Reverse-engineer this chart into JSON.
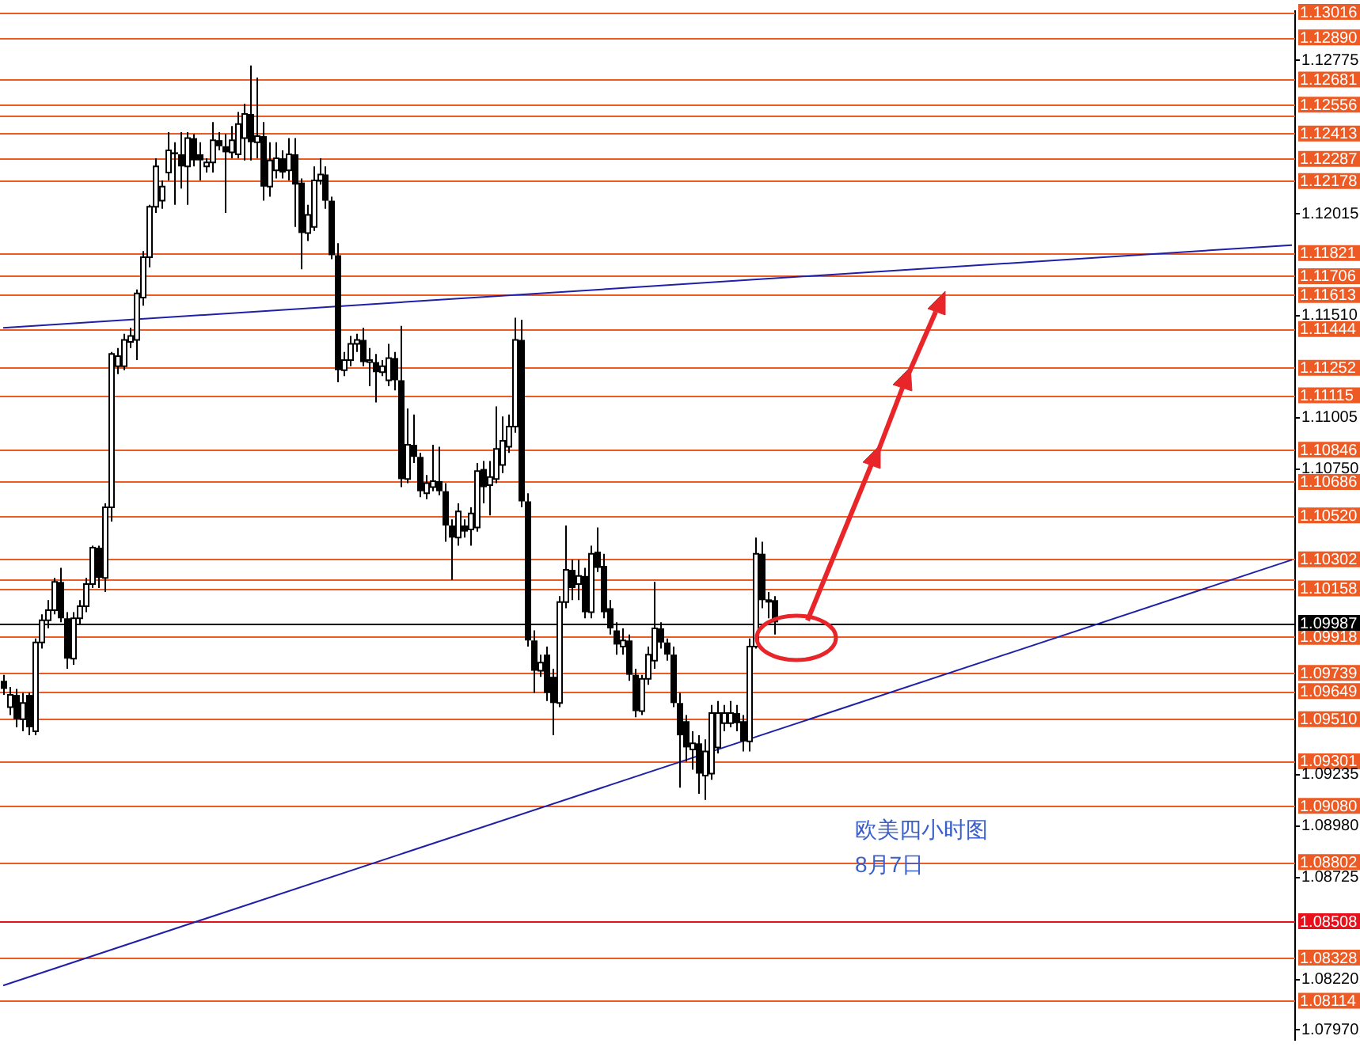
{
  "chart_data": {
    "type": "candlestick",
    "categories": [
      null,
      null,
      null,
      null,
      null,
      null,
      null,
      null,
      null,
      null,
      null,
      null,
      null,
      null,
      null,
      null,
      null,
      null,
      null,
      null,
      null,
      null,
      null,
      null,
      null,
      null,
      null,
      null,
      null,
      null,
      null,
      null,
      null,
      null,
      null,
      null,
      null,
      null,
      null,
      null,
      null,
      null,
      null,
      null,
      null,
      null,
      null,
      null,
      null,
      null,
      null,
      null,
      null,
      null,
      null,
      null,
      null,
      null,
      null,
      null,
      null,
      null,
      null,
      null,
      null,
      null,
      null,
      null,
      null,
      null,
      null,
      null,
      null,
      null,
      null,
      null,
      null,
      null,
      null,
      null,
      null,
      null,
      null,
      null,
      null,
      null,
      null,
      null,
      null,
      null,
      null,
      null,
      null,
      null,
      null,
      null,
      null,
      null,
      null,
      null,
      null,
      null,
      null,
      null,
      null,
      null,
      null,
      null,
      null,
      null,
      null,
      null,
      null,
      null,
      null,
      null,
      null,
      null,
      null,
      null,
      null,
      null,
      null,
      null,
      null,
      null,
      null,
      null,
      null,
      null,
      null,
      null,
      null,
      null,
      null,
      null,
      null,
      null,
      null,
      null,
      null,
      null,
      null,
      null,
      null,
      null,
      null,
      null,
      null,
      null,
      null,
      null,
      null,
      null,
      null,
      null,
      null,
      null,
      null,
      null,
      null,
      null,
      null,
      null,
      null,
      null,
      null,
      null,
      null,
      null,
      null,
      null,
      null,
      null,
      null,
      null,
      null,
      null,
      null,
      null,
      null,
      null,
      null,
      null,
      null,
      null,
      null,
      null,
      null,
      null,
      null,
      null,
      null,
      null,
      null,
      null,
      null,
      null,
      null,
      null,
      null,
      null,
      null,
      null,
      null
    ],
    "ohlc": [
      [
        1.097,
        1.0973,
        1.0963,
        1.0966
      ],
      [
        1.0957,
        1.0967,
        1.0953,
        1.0963
      ],
      [
        1.0963,
        1.0966,
        1.0947,
        1.0951
      ],
      [
        1.0951,
        1.0964,
        1.0945,
        1.0959
      ],
      [
        1.0963,
        1.0964,
        1.0943,
        1.0947
      ],
      [
        1.0945,
        1.0991,
        1.0943,
        1.0989
      ],
      [
        1.0989,
        1.1003,
        1.0986,
        1.1
      ],
      [
        1.1,
        1.101,
        1.0996,
        1.1005
      ],
      [
        1.1005,
        1.1021,
        1.1003,
        1.1019
      ],
      [
        1.1019,
        1.1026,
        1.0999,
        1.1001
      ],
      [
        1.1001,
        1.1004,
        1.0976,
        1.0981
      ],
      [
        1.0981,
        1.1004,
        1.0978,
        1.1001
      ],
      [
        1.1001,
        1.101,
        1.0998,
        1.1007
      ],
      [
        1.1007,
        1.1021,
        1.1004,
        1.1018
      ],
      [
        1.1018,
        1.1037,
        1.1016,
        1.1036
      ],
      [
        1.1036,
        1.1037,
        1.1016,
        1.1021
      ],
      [
        1.1021,
        1.1058,
        1.1014,
        1.1056
      ],
      [
        1.1056,
        1.1133,
        1.1049,
        1.1132
      ],
      [
        1.1126,
        1.1135,
        1.1122,
        1.1131
      ],
      [
        1.1126,
        1.1142,
        1.1124,
        1.1139
      ],
      [
        1.1138,
        1.1145,
        1.1135,
        1.1141
      ],
      [
        1.1139,
        1.1164,
        1.1129,
        1.1162
      ],
      [
        1.116,
        1.1183,
        1.1156,
        1.118
      ],
      [
        1.118,
        1.1206,
        1.1175,
        1.1205
      ],
      [
        1.1205,
        1.1229,
        1.1202,
        1.1225
      ],
      [
        1.1208,
        1.1218,
        1.1204,
        1.1215
      ],
      [
        1.1222,
        1.1242,
        1.1218,
        1.1233
      ],
      [
        1.1232,
        1.1237,
        1.1206,
        1.1231
      ],
      [
        1.1231,
        1.1242,
        1.1214,
        1.1225
      ],
      [
        1.1225,
        1.1242,
        1.1206,
        1.1239
      ],
      [
        1.1239,
        1.1241,
        1.1225,
        1.1228
      ],
      [
        1.1231,
        1.1237,
        1.1218,
        1.1228
      ],
      [
        1.1225,
        1.1229,
        1.1222,
        1.1227
      ],
      [
        1.1227,
        1.1247,
        1.1222,
        1.1238
      ],
      [
        1.1238,
        1.1242,
        1.1233,
        1.1235
      ],
      [
        1.1235,
        1.1241,
        1.1202,
        1.1232
      ],
      [
        1.1232,
        1.1245,
        1.1229,
        1.1238
      ],
      [
        1.1231,
        1.1252,
        1.1229,
        1.1246
      ],
      [
        1.1239,
        1.1256,
        1.1228,
        1.1251
      ],
      [
        1.1251,
        1.1275,
        1.1228,
        1.1237
      ],
      [
        1.1237,
        1.1269,
        1.1229,
        1.124
      ],
      [
        1.124,
        1.1247,
        1.1208,
        1.1215
      ],
      [
        1.1215,
        1.1237,
        1.121,
        1.1228
      ],
      [
        1.1223,
        1.1237,
        1.1219,
        1.1229
      ],
      [
        1.1229,
        1.1233,
        1.1219,
        1.1222
      ],
      [
        1.1223,
        1.1239,
        1.1218,
        1.1231
      ],
      [
        1.1231,
        1.1239,
        1.1195,
        1.1216
      ],
      [
        1.1217,
        1.1219,
        1.1174,
        1.1192
      ],
      [
        1.1192,
        1.1206,
        1.1188,
        1.1201
      ],
      [
        1.1195,
        1.1225,
        1.1193,
        1.1218
      ],
      [
        1.1218,
        1.1229,
        1.1216,
        1.1221
      ],
      [
        1.1221,
        1.1225,
        1.1204,
        1.1208
      ],
      [
        1.1208,
        1.121,
        1.1179,
        1.1181
      ],
      [
        1.1181,
        1.1187,
        1.1118,
        1.1124
      ],
      [
        1.1124,
        1.1133,
        1.1121,
        1.1129
      ],
      [
        1.1129,
        1.1141,
        1.1126,
        1.1137
      ],
      [
        1.1137,
        1.1142,
        1.1133,
        1.1139
      ],
      [
        1.1139,
        1.1145,
        1.1126,
        1.1128
      ],
      [
        1.1128,
        1.1135,
        1.1116,
        1.1129
      ],
      [
        1.1128,
        1.1132,
        1.1108,
        1.1123
      ],
      [
        1.1123,
        1.1129,
        1.1121,
        1.1126
      ],
      [
        1.1119,
        1.1137,
        1.1116,
        1.113
      ],
      [
        1.113,
        1.1133,
        1.1114,
        1.1119
      ],
      [
        1.1119,
        1.1146,
        1.1066,
        1.107
      ],
      [
        1.107,
        1.1105,
        1.1068,
        1.1087
      ],
      [
        1.1087,
        1.1102,
        1.1078,
        1.1081
      ],
      [
        1.1081,
        1.1083,
        1.1061,
        1.1064
      ],
      [
        1.1063,
        1.1072,
        1.106,
        1.1068
      ],
      [
        1.1066,
        1.1087,
        1.1064,
        1.1069
      ],
      [
        1.1069,
        1.1086,
        1.1062,
        1.1064
      ],
      [
        1.1064,
        1.1068,
        1.1039,
        1.1047
      ],
      [
        1.1047,
        1.105,
        1.102,
        1.1041
      ],
      [
        1.1041,
        1.1058,
        1.1037,
        1.1054
      ],
      [
        1.1047,
        1.105,
        1.1041,
        1.1044
      ],
      [
        1.1045,
        1.1056,
        1.1037,
        1.1053
      ],
      [
        1.1046,
        1.1078,
        1.1044,
        1.1074
      ],
      [
        1.1075,
        1.1079,
        1.1058,
        1.1066
      ],
      [
        1.1067,
        1.1079,
        1.1052,
        1.1071
      ],
      [
        1.107,
        1.1106,
        1.1068,
        1.1085
      ],
      [
        1.1077,
        1.1101,
        1.1073,
        1.1089
      ],
      [
        1.1086,
        1.1102,
        1.1083,
        1.1096
      ],
      [
        1.1096,
        1.115,
        1.1093,
        1.1139
      ],
      [
        1.1139,
        1.1149,
        1.1056,
        1.1059
      ],
      [
        1.1059,
        1.1063,
        1.0987,
        1.099
      ],
      [
        1.099,
        1.0995,
        1.0964,
        1.0975
      ],
      [
        1.0975,
        1.0983,
        1.0972,
        1.0979
      ],
      [
        1.0983,
        1.0987,
        1.096,
        1.0964
      ],
      [
        1.0972,
        1.0976,
        1.0943,
        1.0959
      ],
      [
        1.0959,
        1.1012,
        1.0957,
        1.1009
      ],
      [
        1.1009,
        1.1047,
        1.1006,
        1.1025
      ],
      [
        1.1025,
        1.103,
        1.101,
        1.1016
      ],
      [
        1.1018,
        1.103,
        1.101,
        1.1022
      ],
      [
        1.1022,
        1.1026,
        1.1001,
        1.1004
      ],
      [
        1.1004,
        1.1037,
        1.1001,
        1.1033
      ],
      [
        1.1034,
        1.1046,
        1.1024,
        1.1026
      ],
      [
        1.1027,
        1.1033,
        1.1001,
        1.1004
      ],
      [
        1.1006,
        1.101,
        1.0993,
        1.0996
      ],
      [
        1.0995,
        1.0999,
        1.0983,
        1.0988
      ],
      [
        1.0987,
        1.0996,
        1.0983,
        1.099
      ],
      [
        1.099,
        1.0993,
        1.097,
        1.0973
      ],
      [
        1.0973,
        1.0976,
        1.0952,
        1.0955
      ],
      [
        1.0955,
        1.0973,
        1.0953,
        1.0971
      ],
      [
        1.0971,
        1.0987,
        1.0968,
        1.0983
      ],
      [
        1.098,
        1.1019,
        1.0976,
        1.0996
      ],
      [
        1.0996,
        1.0999,
        1.0986,
        1.0989
      ],
      [
        1.0989,
        1.0991,
        1.098,
        1.0983
      ],
      [
        1.0983,
        1.0987,
        1.0957,
        1.0959
      ],
      [
        1.0959,
        1.0964,
        1.0917,
        1.0943
      ],
      [
        1.095,
        1.0953,
        1.093,
        1.0937
      ],
      [
        1.0936,
        1.0945,
        1.0926,
        1.0939
      ],
      [
        1.0939,
        1.0943,
        1.0914,
        1.0924
      ],
      [
        1.0923,
        1.0941,
        1.0911,
        1.0935
      ],
      [
        1.0924,
        1.0958,
        1.0921,
        1.0954
      ],
      [
        1.0937,
        1.096,
        1.0934,
        1.0954
      ],
      [
        1.0949,
        1.0958,
        1.0945,
        1.0954
      ],
      [
        1.0949,
        1.096,
        1.0947,
        1.0954
      ],
      [
        1.0954,
        1.0958,
        1.0945,
        1.0949
      ],
      [
        1.095,
        1.0953,
        1.0935,
        1.094
      ],
      [
        1.094,
        1.0991,
        1.0935,
        1.0987
      ],
      [
        1.0987,
        1.1041,
        1.0986,
        1.1033
      ],
      [
        1.1033,
        1.1039,
        1.1006,
        1.101
      ],
      [
        1.101,
        1.1014,
        1.1001,
        1.101
      ],
      [
        1.101,
        1.1012,
        1.0993,
        1.0999
      ],
      null,
      null,
      null,
      null,
      null,
      null,
      null,
      null,
      null,
      null,
      null,
      null,
      null,
      null,
      null,
      null,
      null,
      null,
      null,
      null,
      null,
      null,
      null,
      null,
      null,
      null,
      null,
      null,
      null,
      null,
      null,
      null,
      null,
      null,
      null,
      null,
      null,
      null,
      null,
      null,
      null,
      null,
      null,
      null,
      null,
      null,
      null,
      null,
      null,
      null,
      null,
      null,
      null,
      null,
      null,
      null,
      null,
      null,
      null,
      null,
      null,
      null,
      null,
      null,
      null,
      null,
      null,
      null,
      null,
      null,
      null,
      null,
      null,
      null,
      null,
      null,
      null,
      null,
      null,
      null,
      null,
      null
    ],
    "series": [
      {
        "type": "line",
        "color": "#1f1fa8",
        "values": [
          1.1145,
          null,
          null,
          null,
          null,
          null,
          null,
          null,
          null,
          null,
          null,
          null,
          null,
          null,
          null,
          null,
          null,
          null,
          null,
          null,
          null,
          null,
          null,
          null,
          null,
          null,
          null,
          null,
          null,
          null,
          null,
          null,
          null,
          null,
          null,
          null,
          null,
          null,
          null,
          null,
          null,
          null,
          null,
          null,
          null,
          null,
          null,
          null,
          null,
          null,
          null,
          null,
          null,
          null,
          null,
          null,
          null,
          null,
          null,
          null,
          null,
          null,
          null,
          null,
          null,
          null,
          null,
          null,
          null,
          null,
          null,
          null,
          null,
          null,
          null,
          null,
          null,
          null,
          null,
          null,
          null,
          null,
          null,
          null,
          null,
          null,
          null,
          null,
          null,
          null,
          null,
          null,
          null,
          null,
          null,
          null,
          null,
          null,
          null,
          null,
          null,
          null,
          null,
          null,
          null,
          null,
          null,
          null,
          null,
          null,
          null,
          null,
          null,
          null,
          null,
          null,
          null,
          null,
          null,
          null,
          null,
          null,
          null,
          null,
          null,
          null,
          null,
          null,
          null,
          null,
          null,
          null,
          null,
          null,
          null,
          null,
          null,
          null,
          null,
          null,
          null,
          null,
          null,
          null,
          null,
          null,
          null,
          null,
          null,
          null,
          null,
          null,
          null,
          null,
          null,
          null,
          null,
          null,
          null,
          null,
          null,
          null,
          null,
          null,
          null,
          null,
          null,
          null,
          null,
          null,
          null,
          null,
          null,
          null,
          null,
          null,
          null,
          null,
          null,
          null,
          null,
          null,
          null,
          null,
          null,
          null,
          null,
          null,
          null,
          null,
          null,
          null,
          null,
          null,
          null,
          null,
          null,
          null,
          null,
          null,
          null,
          null,
          null,
          null,
          1.1186
        ]
      },
      {
        "type": "line",
        "color": "#1f1fa8",
        "values": [
          1.0819,
          null,
          null,
          null,
          null,
          null,
          null,
          null,
          null,
          null,
          null,
          null,
          null,
          null,
          null,
          null,
          null,
          null,
          null,
          null,
          null,
          null,
          null,
          null,
          null,
          null,
          null,
          null,
          null,
          null,
          null,
          null,
          null,
          null,
          null,
          null,
          null,
          null,
          null,
          null,
          null,
          null,
          null,
          null,
          null,
          null,
          null,
          null,
          null,
          null,
          null,
          null,
          null,
          null,
          null,
          null,
          null,
          null,
          null,
          null,
          null,
          null,
          null,
          null,
          null,
          null,
          null,
          null,
          null,
          null,
          null,
          null,
          null,
          null,
          null,
          null,
          null,
          null,
          null,
          null,
          null,
          null,
          null,
          null,
          null,
          null,
          null,
          null,
          null,
          null,
          null,
          null,
          null,
          null,
          null,
          null,
          null,
          null,
          null,
          null,
          null,
          null,
          null,
          null,
          null,
          null,
          null,
          null,
          null,
          null,
          null,
          null,
          null,
          null,
          null,
          null,
          null,
          null,
          null,
          null,
          null,
          null,
          null,
          null,
          null,
          null,
          null,
          null,
          null,
          null,
          null,
          null,
          null,
          null,
          null,
          null,
          null,
          null,
          null,
          null,
          null,
          null,
          null,
          null,
          null,
          null,
          null,
          null,
          null,
          null,
          null,
          null,
          null,
          null,
          null,
          null,
          null,
          null,
          null,
          null,
          null,
          null,
          null,
          null,
          null,
          null,
          null,
          null,
          null,
          null,
          null,
          null,
          null,
          null,
          null,
          null,
          null,
          null,
          null,
          null,
          null,
          null,
          null,
          null,
          null,
          null,
          null,
          null,
          null,
          null,
          null,
          null,
          null,
          null,
          null,
          null,
          null,
          null,
          null,
          null,
          null,
          null,
          null,
          null,
          1.103
        ]
      }
    ],
    "ylim": [
      1.0792,
      1.1302
    ],
    "yticks": [
      1.12775,
      1.12015,
      {
        "value": 1.1151,
        "label": "1.11510"
      },
      1.11005,
      {
        "value": 1.1075,
        "label": "1.10750"
      },
      1.09235,
      {
        "value": 1.0898,
        "label": "1.08980"
      },
      1.08725,
      {
        "value": 1.0822,
        "label": "1.08220"
      },
      {
        "value": 1.0797,
        "label": "1.07970"
      }
    ],
    "tick_labels": "y",
    "legend": false,
    "ref_lines": [
      {
        "axis": "y",
        "value": 1.13016,
        "label": "1.13016",
        "color": "#ee5a24"
      },
      {
        "axis": "y",
        "value": 1.1289,
        "label": "1.12890",
        "color": "#ee5a24"
      },
      {
        "axis": "y",
        "value": 1.12681,
        "label": "1.12681",
        "color": "#ee5a24"
      },
      {
        "axis": "y",
        "value": 1.12505,
        "label": null,
        "color": "#ee5a24"
      },
      {
        "axis": "y",
        "value": 1.12556,
        "label": "1.12556",
        "color": "#ee5a24"
      },
      {
        "axis": "y",
        "value": 1.12413,
        "label": "1.12413",
        "color": "#ee5a24"
      },
      {
        "axis": "y",
        "value": 1.12287,
        "label": "1.12287",
        "color": "#ee5a24"
      },
      {
        "axis": "y",
        "value": 1.12178,
        "label": "1.12178",
        "color": "#ee5a24"
      },
      {
        "axis": "y",
        "value": 1.11821,
        "label": "1.11821",
        "color": "#ee5a24"
      },
      {
        "axis": "y",
        "value": 1.11706,
        "label": "1.11706",
        "color": "#ee5a24"
      },
      {
        "axis": "y",
        "value": 1.11613,
        "label": "1.11613",
        "color": "#ee5a24"
      },
      {
        "axis": "y",
        "value": 1.11444,
        "label": "1.11444",
        "color": "#ee5a24"
      },
      {
        "axis": "y",
        "value": 1.11252,
        "label": "1.11252",
        "color": "#ee5a24"
      },
      {
        "axis": "y",
        "value": 1.11115,
        "label": "1.11115",
        "color": "#ee5a24"
      },
      {
        "axis": "y",
        "value": 1.10846,
        "label": "1.10846",
        "color": "#ee5a24"
      },
      {
        "axis": "y",
        "value": 1.10686,
        "label": "1.10686",
        "color": "#ee5a24"
      },
      {
        "axis": "y",
        "value": 1.1052,
        "label": "1.10520",
        "color": "#ee5a24"
      },
      {
        "axis": "y",
        "value": 1.10205,
        "label": null,
        "color": "#ee5a24"
      },
      {
        "axis": "y",
        "value": 1.10302,
        "label": "1.10302",
        "color": "#ee5a24"
      },
      {
        "axis": "y",
        "value": 1.10158,
        "label": "1.10158",
        "color": "#ee5a24"
      },
      {
        "axis": "y",
        "value": 1.09918,
        "label": "1.09918",
        "color": "#ee5a24"
      },
      {
        "axis": "y",
        "value": 1.09987,
        "label": "1.09987",
        "color": "#000000"
      },
      {
        "axis": "y",
        "value": 1.09739,
        "label": "1.09739",
        "color": "#ee5a24"
      },
      {
        "axis": "y",
        "value": 1.09649,
        "label": "1.09649",
        "color": "#ee5a24"
      },
      {
        "axis": "y",
        "value": 1.0951,
        "label": "1.09510",
        "color": "#ee5a24"
      },
      {
        "axis": "y",
        "value": 1.09301,
        "label": "1.09301",
        "color": "#ee5a24"
      },
      {
        "axis": "y",
        "value": 1.0908,
        "label": "1.09080",
        "color": "#ee5a24"
      },
      {
        "axis": "y",
        "value": 1.08802,
        "label": "1.08802",
        "color": "#ee5a24"
      },
      {
        "axis": "y",
        "value": 1.08508,
        "label": "1.08508",
        "color": "#e8101a"
      },
      {
        "axis": "y",
        "value": 1.08328,
        "label": "1.08328",
        "color": "#ee5a24"
      },
      {
        "axis": "y",
        "value": 1.08114,
        "label": "1.08114",
        "color": "#ee5a24"
      }
    ],
    "annotations": [
      "欧美四小时图",
      "8月7日"
    ]
  }
}
